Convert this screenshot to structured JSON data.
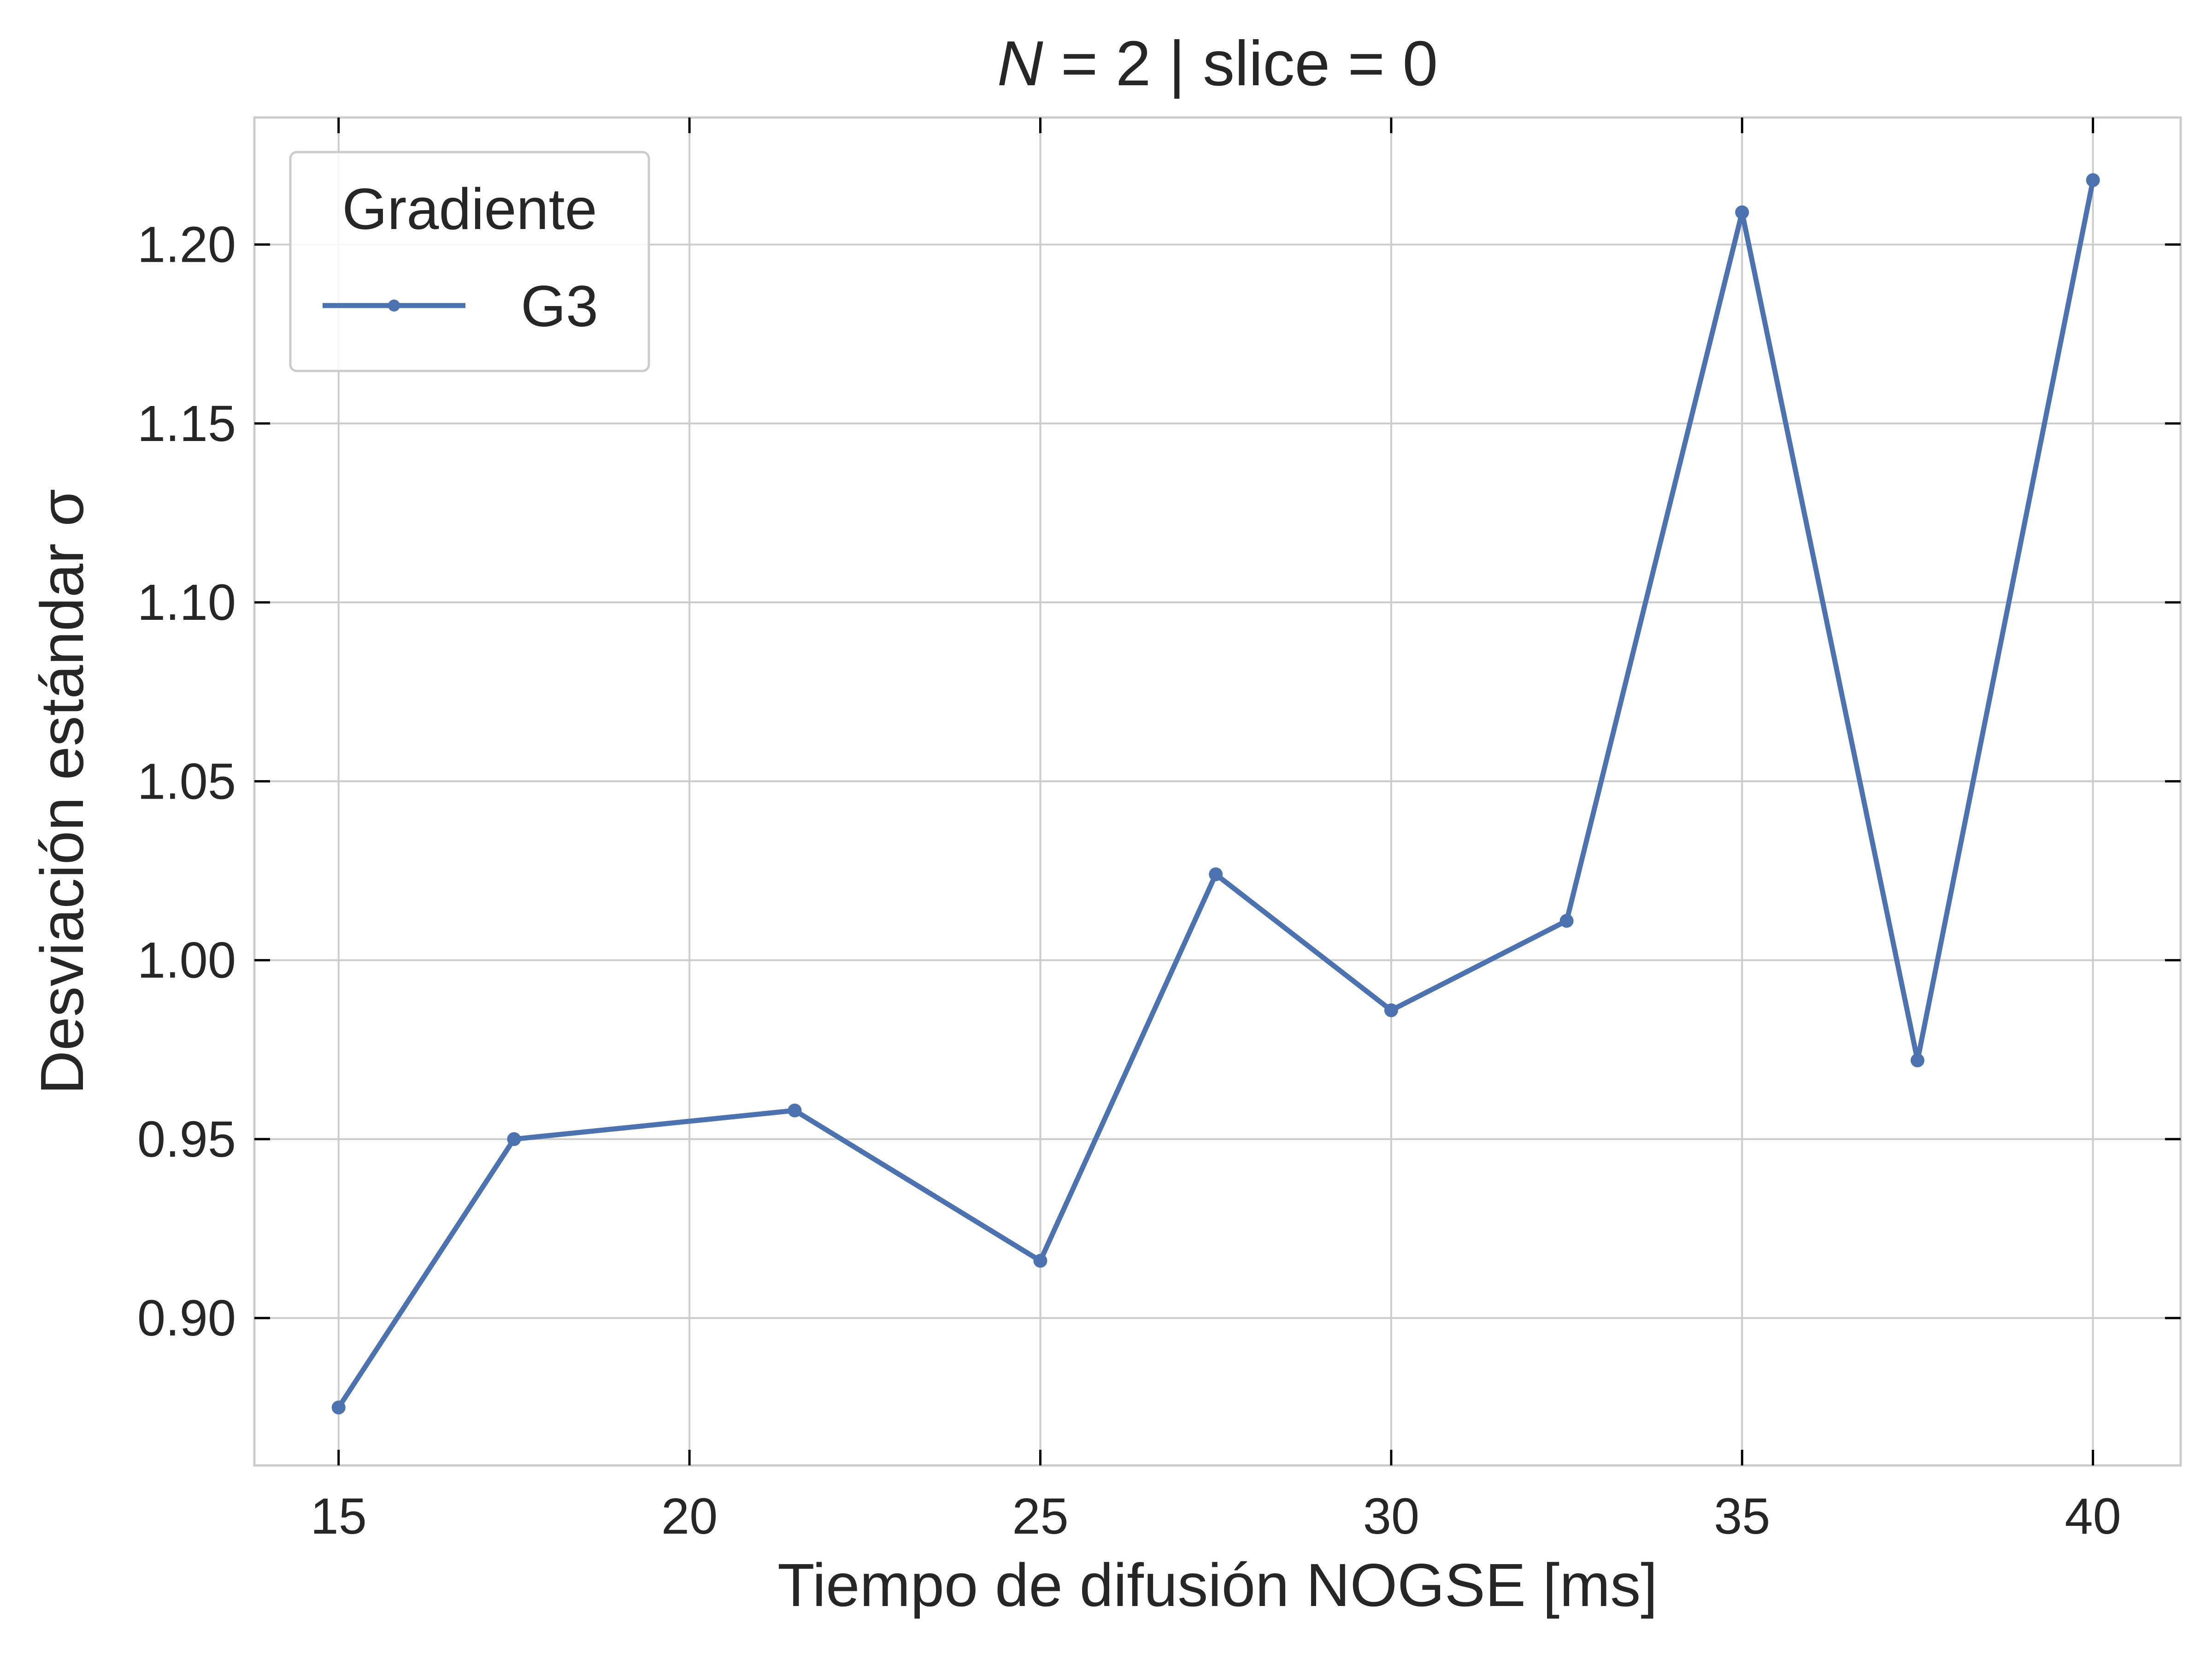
{
  "chart_data": {
    "type": "line",
    "title": {
      "italic": "N",
      "rest": " = 2 | slice = 0"
    },
    "xlabel": "Tiempo de difusión NOGSE [ms]",
    "ylabel": "Desviación estándar σ",
    "xlim": [
      13.8,
      41.25
    ],
    "ylim": [
      0.8588,
      1.2355
    ],
    "xticks": [
      "15",
      "20",
      "25",
      "30",
      "35",
      "40"
    ],
    "yticks": [
      "0.90",
      "0.95",
      "1.00",
      "1.05",
      "1.10",
      "1.15",
      "1.20"
    ],
    "grid": true,
    "legend": {
      "title": "Gradiente",
      "position": "top-left"
    },
    "series": [
      {
        "name": "G3",
        "color": "#4c72b0",
        "x": [
          15,
          17.5,
          21.5,
          25,
          27.5,
          30,
          32.5,
          35,
          37.5,
          40
        ],
        "y": [
          0.875,
          0.95,
          0.958,
          0.916,
          1.024,
          0.986,
          1.011,
          1.209,
          0.972,
          1.218
        ]
      }
    ]
  }
}
